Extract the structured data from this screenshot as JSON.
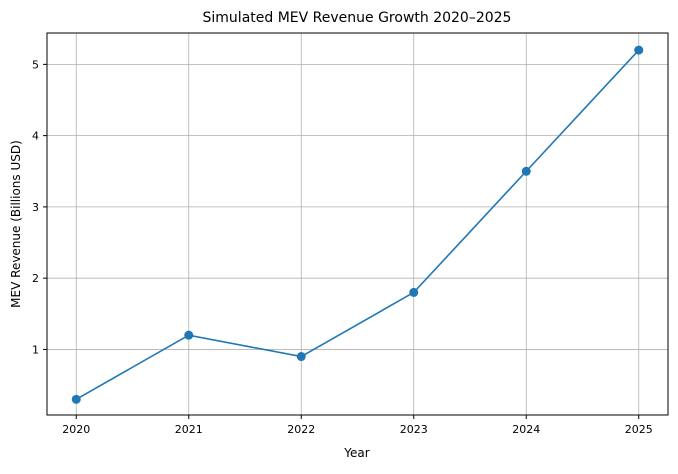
{
  "chart_data": {
    "type": "line",
    "title": "Simulated MEV Revenue Growth 2020–2025",
    "xlabel": "Year",
    "ylabel": "MEV Revenue (Billions USD)",
    "x": [
      2020,
      2021,
      2022,
      2023,
      2024,
      2025
    ],
    "series": [
      {
        "values": [
          0.3,
          1.2,
          0.9,
          1.8,
          3.5,
          5.2
        ],
        "color": "#1f77b4",
        "marker": "circle"
      }
    ],
    "xticks": [
      "2020",
      "2021",
      "2022",
      "2023",
      "2024",
      "2025"
    ],
    "yticks": [
      "1",
      "2",
      "3",
      "4",
      "5"
    ],
    "xlim": [
      2019.74,
      2025.26
    ],
    "ylim": [
      0.08,
      5.44
    ],
    "grid": true
  }
}
